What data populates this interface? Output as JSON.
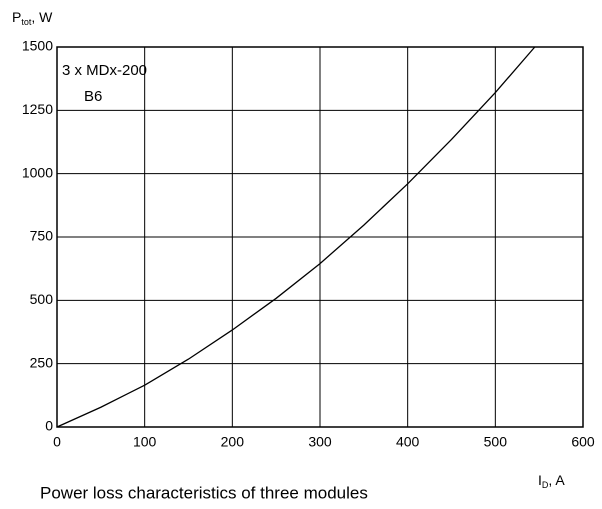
{
  "chart_data": {
    "type": "line",
    "caption": "Power loss characteristics of three modules",
    "y_label": {
      "main": "P",
      "sub": "tot",
      "rest": ", W"
    },
    "x_label": {
      "main": "I",
      "sub": "D",
      "rest": ", A"
    },
    "annotations": [
      "3 x MDx-200",
      "B6"
    ],
    "x": [
      0,
      50,
      100,
      150,
      200,
      250,
      300,
      350,
      400,
      450,
      500,
      545
    ],
    "series": [
      {
        "color": "#000000",
        "values": [
          0,
          78,
          165,
          268,
          383,
          508,
          645,
          797,
          960,
          1135,
          1320,
          1500
        ]
      }
    ],
    "xlim": [
      0,
      600
    ],
    "xticks": [
      0,
      100,
      200,
      300,
      400,
      500,
      600
    ],
    "ylim": [
      0,
      1500
    ],
    "yticks": [
      0,
      250,
      500,
      750,
      1000,
      1250,
      1500
    ],
    "grid": true
  }
}
